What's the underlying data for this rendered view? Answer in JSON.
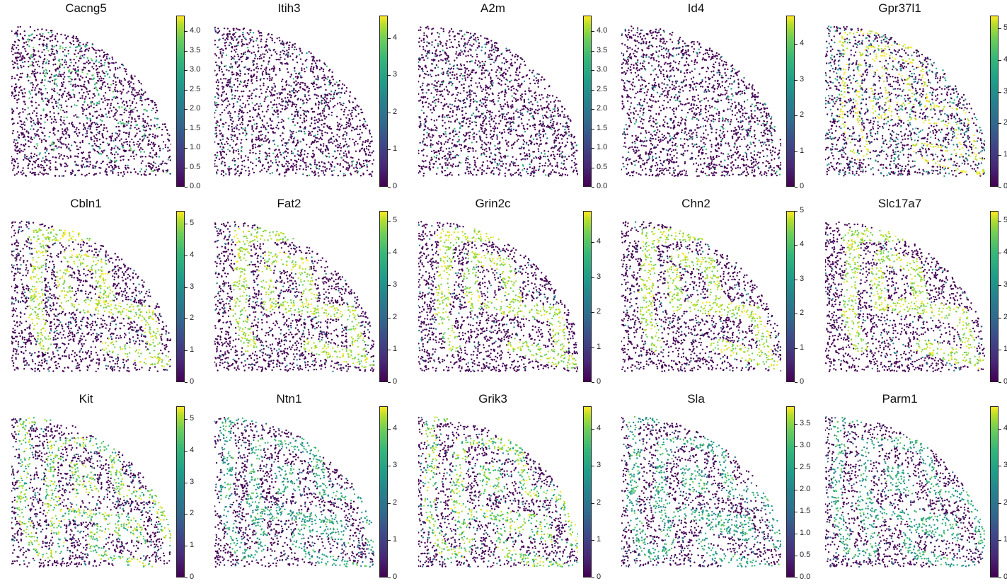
{
  "chart_data": [
    {
      "type": "scatter",
      "title": "Cacng5",
      "ticks": [
        "0.0",
        "0.5",
        "1.0",
        "1.5",
        "2.0",
        "2.5",
        "3.0",
        "3.5",
        "4.0"
      ],
      "vmax": 4.4,
      "pattern": "purkinje"
    },
    {
      "type": "scatter",
      "title": "Itih3",
      "ticks": [
        "0",
        "1",
        "2",
        "3",
        "4"
      ],
      "vmax": 4.6,
      "pattern": "sparse"
    },
    {
      "type": "scatter",
      "title": "A2m",
      "ticks": [
        "0.0",
        "0.5",
        "1.0",
        "1.5",
        "2.0",
        "2.5",
        "3.0",
        "3.5",
        "4.0"
      ],
      "vmax": 4.4,
      "pattern": "sparse"
    },
    {
      "type": "scatter",
      "title": "Id4",
      "ticks": [
        "0",
        "1",
        "2",
        "3",
        "4"
      ],
      "vmax": 4.8,
      "pattern": "sparse"
    },
    {
      "type": "scatter",
      "title": "Gpr37l1",
      "ticks": [
        "0",
        "1",
        "2",
        "3",
        "4",
        "5"
      ],
      "vmax": 5.4,
      "pattern": "purkinje_strong"
    },
    {
      "type": "scatter",
      "title": "Cbln1",
      "ticks": [
        "0",
        "1",
        "2",
        "3",
        "4",
        "5"
      ],
      "vmax": 5.4,
      "pattern": "granular"
    },
    {
      "type": "scatter",
      "title": "Fat2",
      "ticks": [
        "0",
        "1",
        "2",
        "3",
        "4",
        "5"
      ],
      "vmax": 5.3,
      "pattern": "granular"
    },
    {
      "type": "scatter",
      "title": "Grin2c",
      "ticks": [
        "0",
        "1",
        "2",
        "3",
        "4"
      ],
      "vmax": 4.9,
      "pattern": "granular"
    },
    {
      "type": "scatter",
      "title": "Chn2",
      "ticks": [
        "0",
        "1",
        "2",
        "3",
        "4",
        "5"
      ],
      "vmax": 5.0,
      "pattern": "granular"
    },
    {
      "type": "scatter",
      "title": "Slc17a7",
      "ticks": [
        "0",
        "1",
        "2",
        "3",
        "4",
        "5"
      ],
      "vmax": 5.3,
      "pattern": "granular"
    },
    {
      "type": "scatter",
      "title": "Kit",
      "ticks": [
        "0",
        "1",
        "2",
        "3",
        "4",
        "5"
      ],
      "vmax": 5.4,
      "pattern": "molecular"
    },
    {
      "type": "scatter",
      "title": "Ntn1",
      "ticks": [
        "0",
        "1",
        "2",
        "3",
        "4"
      ],
      "vmax": 4.6,
      "pattern": "molecular_mid"
    },
    {
      "type": "scatter",
      "title": "Grik3",
      "ticks": [
        "0",
        "1",
        "2",
        "3",
        "4"
      ],
      "vmax": 4.6,
      "pattern": "molecular"
    },
    {
      "type": "scatter",
      "title": "Sla",
      "ticks": [
        "0.0",
        "0.5",
        "1.0",
        "1.5",
        "2.0",
        "2.5",
        "3.0",
        "3.5"
      ],
      "vmax": 3.9,
      "pattern": "molecular_mid"
    },
    {
      "type": "scatter",
      "title": "Parm1",
      "ticks": [
        "0",
        "1",
        "2",
        "3",
        "4"
      ],
      "vmax": 4.6,
      "pattern": "molecular_mid"
    }
  ]
}
